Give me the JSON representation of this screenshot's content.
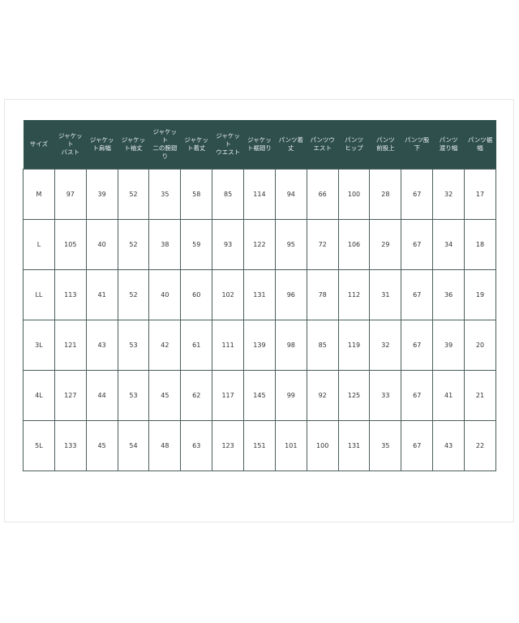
{
  "headers": [
    "サイズ",
    "ジャケット\nバスト",
    "ジャケッ\nト肩幅",
    "ジャケッ\nト袖丈",
    "ジャケット\n二の腕廻り",
    "ジャケッ\nト着丈",
    "ジャケット\nウエスト",
    "ジャケッ\nト裾廻り",
    "パンツ着丈",
    "パンツウ\nエスト",
    "パンツ\nヒップ",
    "パンツ\n前股上",
    "パンツ股下",
    "パンツ\n渡り幅",
    "パンツ裾幅"
  ],
  "rows": [
    [
      "M",
      "97",
      "39",
      "52",
      "35",
      "58",
      "85",
      "114",
      "94",
      "66",
      "100",
      "28",
      "67",
      "32",
      "17"
    ],
    [
      "L",
      "105",
      "40",
      "52",
      "38",
      "59",
      "93",
      "122",
      "95",
      "72",
      "106",
      "29",
      "67",
      "34",
      "18"
    ],
    [
      "LL",
      "113",
      "41",
      "52",
      "40",
      "60",
      "102",
      "131",
      "96",
      "78",
      "112",
      "31",
      "67",
      "36",
      "19"
    ],
    [
      "3L",
      "121",
      "43",
      "53",
      "42",
      "61",
      "111",
      "139",
      "98",
      "85",
      "119",
      "32",
      "67",
      "39",
      "20"
    ],
    [
      "4L",
      "127",
      "44",
      "53",
      "45",
      "62",
      "117",
      "145",
      "99",
      "92",
      "125",
      "33",
      "67",
      "41",
      "21"
    ],
    [
      "5L",
      "133",
      "45",
      "54",
      "48",
      "63",
      "123",
      "151",
      "101",
      "100",
      "131",
      "35",
      "67",
      "43",
      "22"
    ]
  ],
  "colors": {
    "header_bg": "#2e4f4c"
  }
}
